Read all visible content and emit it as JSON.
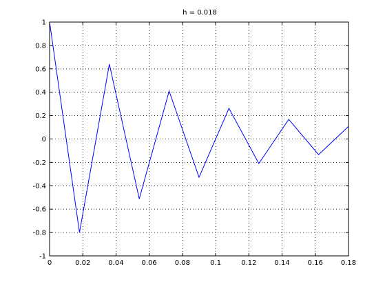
{
  "chart_data": {
    "type": "line",
    "title": "h = 0.018",
    "xlabel": "",
    "ylabel": "",
    "xlim": [
      0,
      0.18
    ],
    "ylim": [
      -1,
      1
    ],
    "grid": true,
    "x_ticks": [
      0,
      0.02,
      0.04,
      0.06,
      0.08,
      0.1,
      0.12,
      0.14,
      0.16,
      0.18
    ],
    "x_tick_labels": [
      "0",
      "0.02",
      "0.04",
      "0.06",
      "0.08",
      "0.1",
      "0.12",
      "0.14",
      "0.16",
      "0.18"
    ],
    "y_ticks": [
      -1,
      -0.8,
      -0.6,
      -0.4,
      -0.2,
      0,
      0.2,
      0.4,
      0.6,
      0.8,
      1
    ],
    "y_tick_labels": [
      "-1",
      "-0.8",
      "-0.6",
      "-0.4",
      "-0.2",
      "0",
      "0.2",
      "0.4",
      "0.6",
      "0.8",
      "1"
    ],
    "series": [
      {
        "color": "#0000ff",
        "x": [
          0,
          0.018,
          0.036,
          0.054,
          0.072,
          0.09,
          0.108,
          0.126,
          0.144,
          0.162,
          0.18
        ],
        "y": [
          1,
          -0.8,
          0.64,
          -0.512,
          0.4096,
          -0.3277,
          0.2621,
          -0.2097,
          0.1678,
          -0.1342,
          0.1074
        ]
      }
    ]
  }
}
